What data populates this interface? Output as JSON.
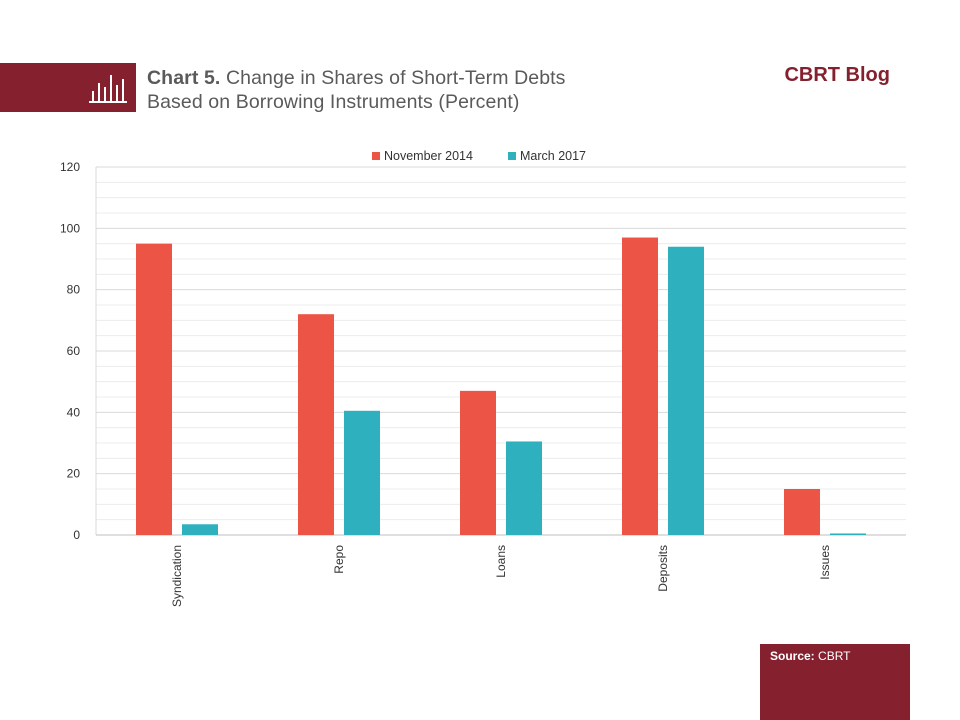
{
  "header": {
    "title_prefix": "Chart 5.",
    "title_line1": "Change in Shares of Short-Term Debts",
    "title_line2": "Based on Borrowing Instruments (Percent)",
    "brand": "CBRT Blog"
  },
  "footer": {
    "source_label": "Source:",
    "source_value": "CBRT"
  },
  "colors": {
    "accent": "#85202f",
    "series_1": "#ec5446",
    "series_2": "#2eb0bf"
  },
  "chart_data": {
    "type": "bar",
    "categories": [
      "Syndication",
      "Repo",
      "Loans",
      "Deposits",
      "Issues"
    ],
    "series": [
      {
        "name": "November 2014",
        "values": [
          95,
          72,
          47,
          97,
          15
        ]
      },
      {
        "name": "March 2017",
        "values": [
          3.5,
          40.5,
          30.5,
          94,
          0.5
        ]
      }
    ],
    "ylim": [
      0,
      120
    ],
    "yticks": [
      0,
      20,
      40,
      60,
      80,
      100,
      120
    ],
    "legend": "top-center",
    "grid": true
  }
}
